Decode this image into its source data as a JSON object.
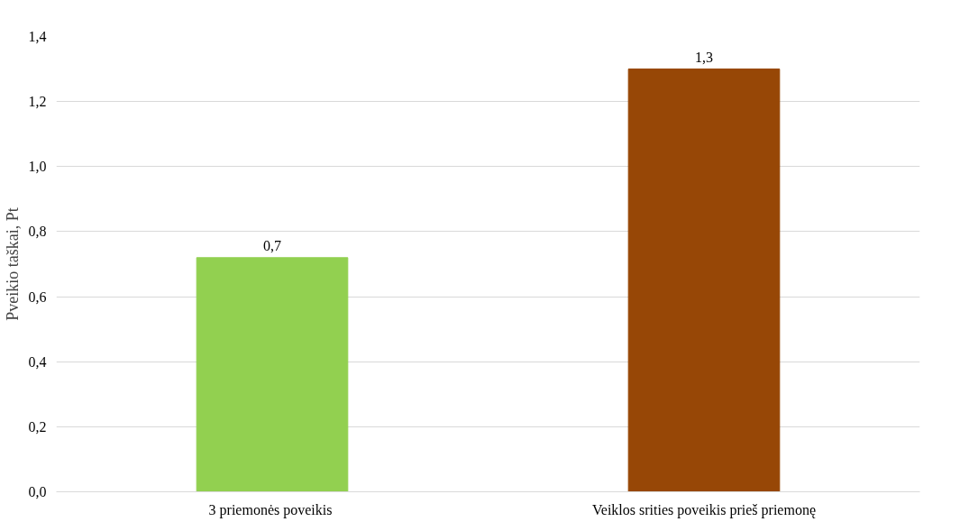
{
  "chart_data": {
    "type": "bar",
    "ylabel": "Pveikio taškai, Pt",
    "categories": [
      "3 priemonės  poveikis",
      "Veiklos srities poveikis prieš priemonę"
    ],
    "values": [
      0.72,
      1.3
    ],
    "colors": [
      "#92d050",
      "#974706"
    ],
    "value_labels": [
      "0,7",
      "1,3"
    ],
    "ylim": [
      0,
      1.4
    ],
    "yticks": [
      {
        "value": 0,
        "label": "0,0"
      },
      {
        "value": 0.2,
        "label": "0,2"
      },
      {
        "value": 0.4,
        "label": "0,4"
      },
      {
        "value": 0.6,
        "label": "0,6"
      },
      {
        "value": 0.8,
        "label": "0,8"
      },
      {
        "value": 1.0,
        "label": "1,0"
      },
      {
        "value": 1.2,
        "label": "1,2"
      },
      {
        "value": 1.4,
        "label": "1,4"
      }
    ],
    "grid": "y"
  }
}
